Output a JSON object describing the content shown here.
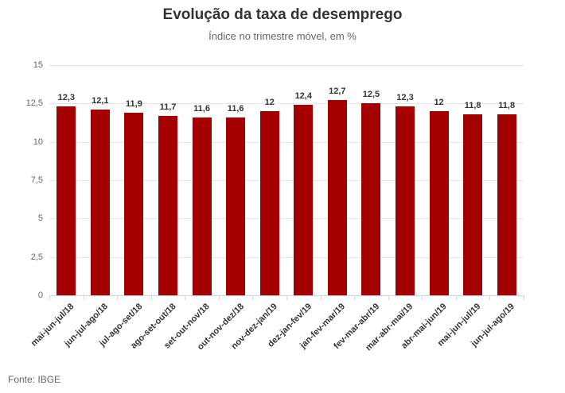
{
  "chart_data": {
    "type": "bar",
    "title": "Evolução da taxa de desemprego",
    "subtitle": "Índice no trimestre móvel, em %",
    "source": "Fonte: IBGE",
    "categories": [
      "mai-jun-jul/18",
      "jun-jul-ago/18",
      "jul-ago-set/18",
      "ago-set-out/18",
      "set-out-nov/18",
      "out-nov-dez/18",
      "nov-dez-jan/19",
      "dez-jan-fev/19",
      "jan-fev-mar/19",
      "fev-mar-abr/19",
      "mar-abr-mai/19",
      "abr-mai-jun/19",
      "mai-jun-jul/19",
      "jun-jul-ago/19"
    ],
    "values": [
      12.3,
      12.1,
      11.9,
      11.7,
      11.6,
      11.6,
      12,
      12.4,
      12.7,
      12.5,
      12.3,
      12,
      11.8,
      11.8
    ],
    "value_labels": [
      "12,3",
      "12,1",
      "11,9",
      "11,7",
      "11,6",
      "11,6",
      "12",
      "12,4",
      "12,7",
      "12,5",
      "12,3",
      "12",
      "11,8",
      "11,8"
    ],
    "xlabel": "",
    "ylabel": "",
    "ylim": [
      0,
      15
    ],
    "yticks": [
      0,
      2.5,
      5,
      7.5,
      10,
      12.5,
      15
    ],
    "ytick_labels": [
      "0",
      "2,5",
      "5",
      "7,5",
      "10",
      "12,5",
      "15"
    ],
    "grid": true,
    "legend": false
  },
  "colors": {
    "bar": "#a50000",
    "grid": "#e6e6e6",
    "axis": "#ccd6eb",
    "text_dark": "#333333",
    "text_muted": "#666666"
  }
}
